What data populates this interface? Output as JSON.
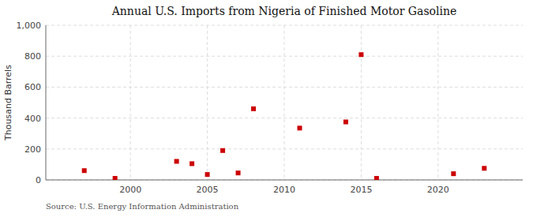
{
  "chart_data": {
    "type": "scatter",
    "title": "Annual U.S. Imports from Nigeria of Finished Motor Gasoline",
    "ylabel": "Thousand Barrels",
    "annotations": [
      "Source: U.S. Energy Information Administration"
    ],
    "x": [
      1997,
      1999,
      2003,
      2004,
      2005,
      2006,
      2007,
      2008,
      2011,
      2014,
      2015,
      2016,
      2021,
      2023
    ],
    "values": [
      60,
      10,
      120,
      105,
      35,
      190,
      45,
      460,
      335,
      375,
      810,
      10,
      40,
      75
    ],
    "color": "#cc0000",
    "marker": "square",
    "xlim": [
      1994.5,
      2025.5
    ],
    "xticks": [
      2000,
      2005,
      2010,
      2015,
      2020
    ],
    "ylim": [
      0,
      1000
    ],
    "yticks": [
      0,
      200,
      400,
      600,
      800,
      {
        "value": 1000,
        "label": "1,000"
      }
    ],
    "grid": true
  }
}
